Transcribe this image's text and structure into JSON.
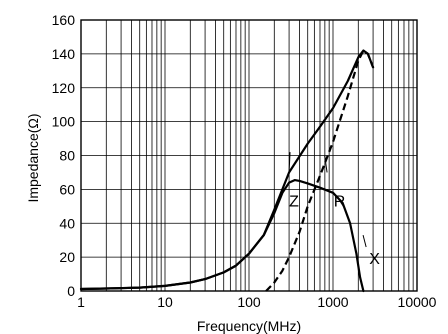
{
  "chart_data": {
    "type": "line",
    "title": "",
    "xlabel": "Frequency(MHz)",
    "ylabel": "Impedance(Ω)",
    "xscale": "log",
    "xlim": [
      1,
      10000
    ],
    "ylim": [
      0,
      160
    ],
    "grid": true,
    "legend": "none",
    "x_ticks": [
      "1",
      "10",
      "100",
      "1000",
      "10000"
    ],
    "y_ticks": [
      "0",
      "20",
      "40",
      "60",
      "80",
      "100",
      "120",
      "140",
      "160"
    ],
    "series": [
      {
        "name": "Z",
        "style": "solid",
        "x": [
          1,
          2,
          5,
          10,
          20,
          30,
          50,
          70,
          100,
          150,
          200,
          300,
          500,
          700,
          1000,
          1500,
          2000,
          2300,
          2600,
          3000
        ],
        "y": [
          1.2,
          1.5,
          2,
          3,
          5,
          7,
          11,
          15,
          22,
          33,
          48,
          70,
          87,
          97,
          108,
          124,
          138,
          142,
          140,
          132
        ]
      },
      {
        "name": "R",
        "style": "dashed",
        "x": [
          160,
          200,
          250,
          300,
          400,
          500,
          700,
          1000,
          1500,
          2000,
          2300,
          2600,
          3000
        ],
        "y": [
          0,
          5,
          12,
          20,
          35,
          50,
          68,
          88,
          115,
          136,
          142,
          140,
          132
        ]
      },
      {
        "name": "X",
        "style": "solid",
        "x": [
          1,
          2,
          5,
          10,
          20,
          30,
          50,
          70,
          100,
          150,
          200,
          250,
          300,
          350,
          400,
          500,
          700,
          1000,
          1300,
          1600,
          1900,
          2100,
          2300
        ],
        "y": [
          1.2,
          1.5,
          2,
          3,
          5,
          7,
          11,
          15,
          22,
          33,
          46,
          58,
          64,
          65.5,
          65,
          63.5,
          61,
          58,
          52,
          40,
          22,
          8,
          0
        ]
      }
    ]
  }
}
